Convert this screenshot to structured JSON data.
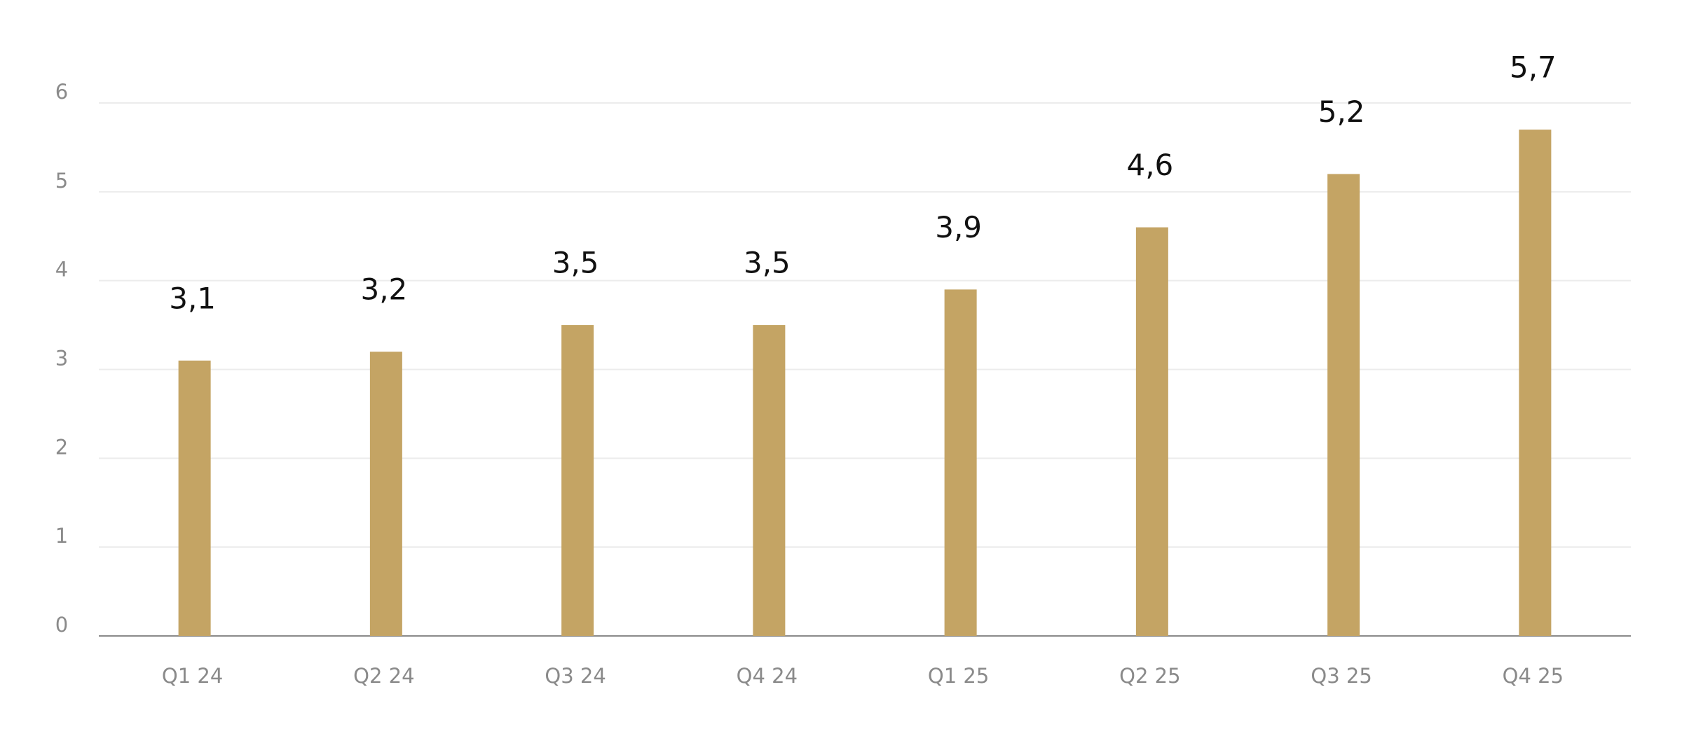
{
  "chart_data": {
    "type": "bar",
    "categories": [
      "Q1 24",
      "Q2 24",
      "Q3 24",
      "Q4 24",
      "Q1 25",
      "Q2 25",
      "Q3 25",
      "Q4 25"
    ],
    "values": [
      3.1,
      3.2,
      3.5,
      3.5,
      3.9,
      4.6,
      5.2,
      5.7
    ],
    "value_labels": [
      "3,1",
      "3,2",
      "3,5",
      "3,5",
      "3,9",
      "4,6",
      "5,2",
      "5,7"
    ],
    "color": "#c4a464",
    "ylim": [
      0,
      6
    ],
    "yticks": [
      0,
      1,
      2,
      3,
      4,
      5,
      6
    ],
    "grid": true
  }
}
